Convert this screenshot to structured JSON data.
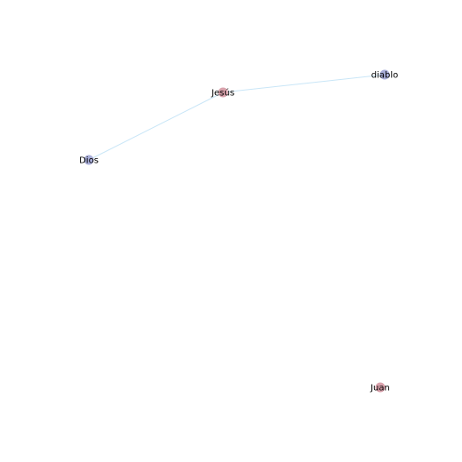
{
  "graph": {
    "nodes": [
      {
        "id": "jesus",
        "label": "Jesús",
        "color": "#d9a2ac"
      },
      {
        "id": "diablo",
        "label": "diablo",
        "color": "#a9aed8"
      },
      {
        "id": "dios",
        "label": "Dios",
        "color": "#a9aed8"
      },
      {
        "id": "juan",
        "label": "Juan",
        "color": "#d9a2ac"
      }
    ],
    "edges": [
      {
        "source": "jesus",
        "target": "diablo"
      },
      {
        "source": "jesus",
        "target": "dios"
      }
    ],
    "edge_color": "#c9e6f7"
  }
}
